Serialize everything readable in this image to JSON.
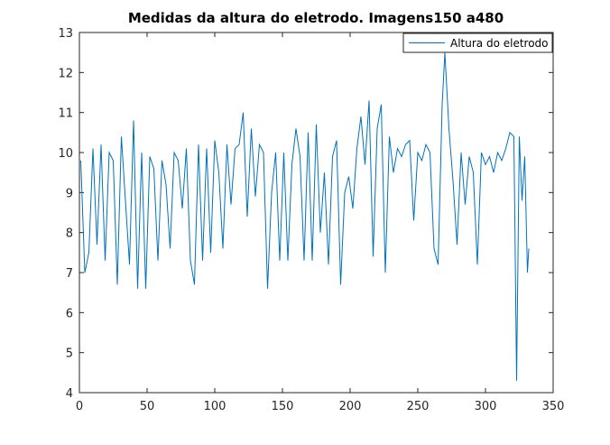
{
  "chart_data": {
    "type": "line",
    "title": "Medidas da altura do eletrodo. Imagens150 a480",
    "x": [
      1,
      4,
      7,
      10,
      13,
      16,
      19,
      22,
      25,
      28,
      31,
      34,
      37,
      40,
      43,
      46,
      49,
      52,
      55,
      58,
      61,
      64,
      67,
      70,
      73,
      76,
      79,
      82,
      85,
      88,
      91,
      94,
      97,
      100,
      103,
      106,
      109,
      112,
      115,
      118,
      121,
      124,
      127,
      130,
      133,
      136,
      139,
      142,
      145,
      148,
      151,
      154,
      157,
      160,
      163,
      166,
      169,
      172,
      175,
      178,
      181,
      184,
      187,
      190,
      193,
      196,
      199,
      202,
      205,
      208,
      211,
      214,
      217,
      220,
      223,
      226,
      229,
      232,
      235,
      238,
      241,
      244,
      247,
      250,
      253,
      256,
      259,
      262,
      265,
      268,
      270,
      273,
      276,
      279,
      282,
      285,
      288,
      291,
      294,
      297,
      300,
      303,
      306,
      309,
      312,
      315,
      318,
      321,
      323,
      325,
      327,
      329,
      331,
      332
    ],
    "series": [
      {
        "name": "Altura do eletrodo",
        "color": "#0072bd",
        "values": [
          9.8,
          7.0,
          7.5,
          10.1,
          7.7,
          10.2,
          7.3,
          10.0,
          9.8,
          6.7,
          10.4,
          8.8,
          7.2,
          10.8,
          6.6,
          10.0,
          6.6,
          9.9,
          9.6,
          7.3,
          9.8,
          9.2,
          7.6,
          10.0,
          9.8,
          8.6,
          10.1,
          7.3,
          6.7,
          10.2,
          7.3,
          10.1,
          7.5,
          10.3,
          9.5,
          7.6,
          10.2,
          8.7,
          10.1,
          10.2,
          11.0,
          8.4,
          10.6,
          8.9,
          10.2,
          10.0,
          6.6,
          9.0,
          10.0,
          7.3,
          10.0,
          7.3,
          9.7,
          10.6,
          9.9,
          7.3,
          10.5,
          7.3,
          10.7,
          8.0,
          9.5,
          7.2,
          9.9,
          10.3,
          6.7,
          9.0,
          9.4,
          8.6,
          10.1,
          10.9,
          9.7,
          11.3,
          7.4,
          10.6,
          11.2,
          7.0,
          10.4,
          9.5,
          10.1,
          9.9,
          10.2,
          10.3,
          8.3,
          10.0,
          9.8,
          10.2,
          10.0,
          7.6,
          7.2,
          11.2,
          12.5,
          10.6,
          9.3,
          7.7,
          10.0,
          8.7,
          9.9,
          9.5,
          7.2,
          10.0,
          9.7,
          9.9,
          9.5,
          10.0,
          9.8,
          10.1,
          10.5,
          10.4,
          4.3,
          10.4,
          8.8,
          9.9,
          7.0,
          7.6
        ]
      }
    ],
    "xlim": [
      0,
      350
    ],
    "xticks": [
      0,
      50,
      100,
      150,
      200,
      250,
      300,
      350
    ],
    "ylim": [
      4,
      13
    ],
    "yticks": [
      4,
      5,
      6,
      7,
      8,
      9,
      10,
      11,
      12,
      13
    ],
    "legend": "top-right"
  }
}
